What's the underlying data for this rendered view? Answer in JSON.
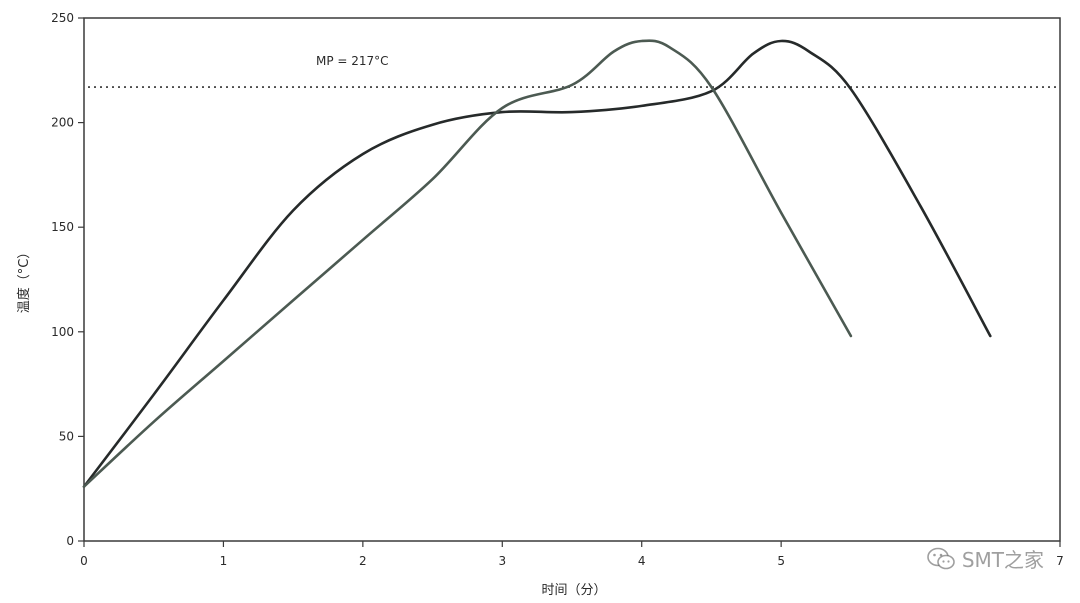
{
  "chart_data": {
    "type": "line",
    "xlabel": "时间（分）",
    "ylabel": "温度（°C）",
    "xlim": [
      0,
      7
    ],
    "ylim": [
      0,
      250
    ],
    "x_ticks": [
      "0",
      "1",
      "2",
      "3",
      "4",
      "5",
      "7"
    ],
    "y_ticks": [
      "0",
      "50",
      "100",
      "150",
      "200",
      "250"
    ],
    "x_tick_values": [
      0,
      1,
      2,
      3,
      4,
      5,
      7
    ],
    "y_tick_values": [
      0,
      50,
      100,
      150,
      200,
      250
    ],
    "grid": false,
    "reference_line": {
      "y": 217,
      "label": "MP = 217°C",
      "style": "dotted"
    },
    "series": [
      {
        "color": "#262a2a",
        "x": [
          0,
          0.5,
          1,
          1.5,
          2,
          2.5,
          3,
          3.5,
          4,
          4.5,
          4.8,
          5,
          5.2,
          5.5,
          6,
          6.5
        ],
        "y": [
          26,
          70,
          115,
          158,
          185,
          199,
          205,
          205,
          208,
          215,
          233,
          239,
          234,
          216,
          160,
          98
        ]
      },
      {
        "color": "#4c5a52",
        "x": [
          0,
          0.5,
          1,
          1.5,
          2,
          2.5,
          3,
          3.5,
          3.8,
          4,
          4.2,
          4.5,
          5,
          5.5
        ],
        "y": [
          26,
          57,
          86,
          115,
          144,
          173,
          207,
          218,
          234,
          239,
          236,
          217,
          157,
          98
        ]
      }
    ]
  },
  "watermark": {
    "icon": "wechat-icon",
    "text": "SMT之家"
  }
}
